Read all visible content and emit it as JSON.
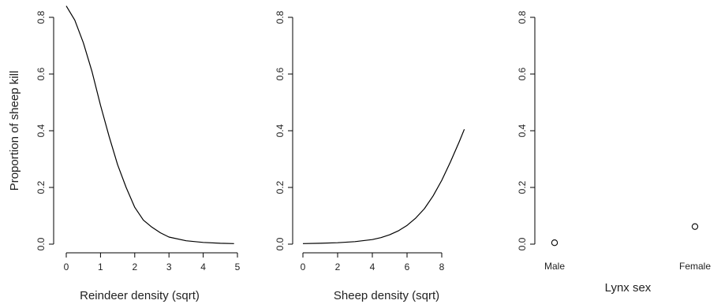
{
  "figure": {
    "shared_ylabel": "Proportion of sheep kill"
  },
  "chart_data": [
    {
      "type": "line",
      "xlabel": "Reindeer density (sqrt)",
      "ylabel": "Proportion of sheep kill",
      "xlim": [
        0,
        5
      ],
      "ylim": [
        0,
        0.8
      ],
      "xticks": [
        "0",
        "1",
        "2",
        "3",
        "4",
        "5"
      ],
      "yticks": [
        "0.0",
        "0.2",
        "0.4",
        "0.6",
        "0.8"
      ],
      "series": [
        {
          "x": [
            0,
            0.25,
            0.5,
            0.75,
            1.0,
            1.25,
            1.5,
            1.75,
            2.0,
            2.25,
            2.5,
            2.75,
            3.0,
            3.5,
            4.0,
            4.5,
            4.9
          ],
          "y": [
            0.84,
            0.79,
            0.71,
            0.61,
            0.49,
            0.38,
            0.28,
            0.2,
            0.13,
            0.085,
            0.06,
            0.04,
            0.025,
            0.012,
            0.006,
            0.003,
            0.002
          ]
        }
      ]
    },
    {
      "type": "line",
      "xlabel": "Sheep density (sqrt)",
      "ylabel": "",
      "xlim": [
        0,
        9.5
      ],
      "ylim": [
        0,
        0.8
      ],
      "xticks": [
        "0",
        "2",
        "4",
        "6",
        "8"
      ],
      "yticks": [
        "0.0",
        "0.2",
        "0.4",
        "0.6",
        "0.8"
      ],
      "series": [
        {
          "x": [
            0,
            1,
            2,
            3,
            4,
            4.5,
            5,
            5.5,
            6,
            6.5,
            7,
            7.5,
            8,
            8.5,
            9,
            9.3
          ],
          "y": [
            0.002,
            0.003,
            0.005,
            0.009,
            0.016,
            0.023,
            0.033,
            0.047,
            0.066,
            0.092,
            0.125,
            0.17,
            0.225,
            0.29,
            0.36,
            0.405
          ]
        }
      ]
    },
    {
      "type": "scatter",
      "xlabel": "Lynx sex",
      "ylabel": "",
      "categories": [
        "Male",
        "Female"
      ],
      "ylim": [
        0,
        0.8
      ],
      "yticks": [
        "0.0",
        "0.2",
        "0.4",
        "0.6",
        "0.8"
      ],
      "values": [
        0.005,
        0.062
      ]
    }
  ]
}
